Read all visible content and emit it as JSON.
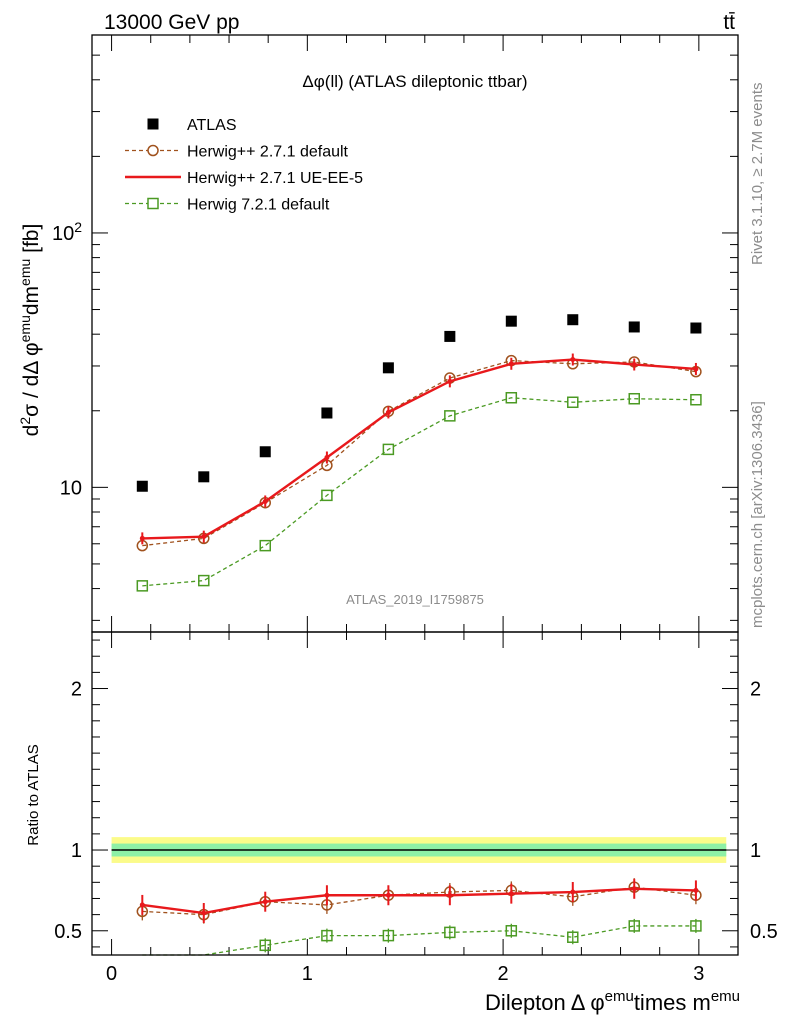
{
  "header": {
    "left": "13000 GeV pp",
    "right": "tt̄"
  },
  "side_text": {
    "upper": "Rivet 3.1.10, ≥ 2.7M events",
    "lower": "mcplots.cern.ch [arXiv:1306.3436]"
  },
  "chart_data": [
    {
      "type": "scatter",
      "panel": "main",
      "title": "Δφ(ll) (ATLAS dileptonic ttbar)",
      "watermark": "ATLAS_2019_I1759875",
      "ylabel": "d²σ / dΔ φemu dmemu [fb]",
      "yscale": "log",
      "ylim": [
        2.7,
        600
      ],
      "xlim": [
        -0.1,
        3.2
      ],
      "yticks": [
        10,
        100
      ],
      "ytick_labels": [
        "10",
        "10²"
      ],
      "legend_position": "top-left",
      "x": [
        0.157,
        0.471,
        0.785,
        1.1,
        1.414,
        1.728,
        2.042,
        2.356,
        2.67,
        2.985
      ],
      "series": [
        {
          "name": "ATLAS",
          "style": "square-markers",
          "color": "#000000",
          "values": [
            10.1,
            11.0,
            13.8,
            19.6,
            29.5,
            39.2,
            45.0,
            45.6,
            42.7,
            42.3
          ]
        },
        {
          "name": "Herwig++ 2.7.1 default",
          "style": "dashed-circles",
          "color": "#a0521e",
          "values": [
            5.9,
            6.3,
            8.7,
            12.2,
            19.9,
            26.9,
            31.5,
            30.6,
            31.1,
            28.5
          ]
        },
        {
          "name": "Herwig++ 2.7.1 UE-EE-5",
          "style": "solid-line",
          "color": "#e8191c",
          "values": [
            6.3,
            6.4,
            8.8,
            13.1,
            19.7,
            26.1,
            30.6,
            31.8,
            30.4,
            29.2
          ]
        },
        {
          "name": "Herwig 7.2.1 default",
          "style": "dashed-squares",
          "color": "#4b9a23",
          "values": [
            4.1,
            4.3,
            5.9,
            9.3,
            14.1,
            19.1,
            22.5,
            21.6,
            22.3,
            22.1
          ]
        }
      ]
    },
    {
      "type": "line",
      "panel": "ratio",
      "xlabel": "Dilepton Δ φemu times memu",
      "ylabel": "Ratio to ATLAS",
      "ylim": [
        0.35,
        2.35
      ],
      "yticks": [
        0.5,
        1,
        2
      ],
      "ytick_labels": [
        "0.5",
        "1",
        "2"
      ],
      "xticks": [
        0,
        1,
        2,
        3
      ],
      "xtick_labels": [
        "0",
        "1",
        "2",
        "3"
      ],
      "reference_band": {
        "inner": [
          0.96,
          1.04
        ],
        "outer": [
          0.92,
          1.08
        ]
      },
      "x": [
        0.157,
        0.471,
        0.785,
        1.1,
        1.414,
        1.728,
        2.042,
        2.356,
        2.67,
        2.985
      ],
      "series": [
        {
          "name": "Herwig++ 2.7.1 default",
          "color": "#a0521e",
          "values": [
            0.62,
            0.6,
            0.68,
            0.66,
            0.72,
            0.74,
            0.75,
            0.71,
            0.77,
            0.72
          ]
        },
        {
          "name": "Herwig++ 2.7.1 UE-EE-5",
          "color": "#e8191c",
          "values": [
            0.66,
            0.61,
            0.68,
            0.72,
            0.72,
            0.72,
            0.73,
            0.74,
            0.76,
            0.75
          ]
        },
        {
          "name": "Herwig 7.2.1 default",
          "color": "#4b9a23",
          "values": [
            0.35,
            0.33,
            0.41,
            0.47,
            0.47,
            0.49,
            0.5,
            0.46,
            0.53,
            0.53
          ]
        }
      ]
    }
  ]
}
